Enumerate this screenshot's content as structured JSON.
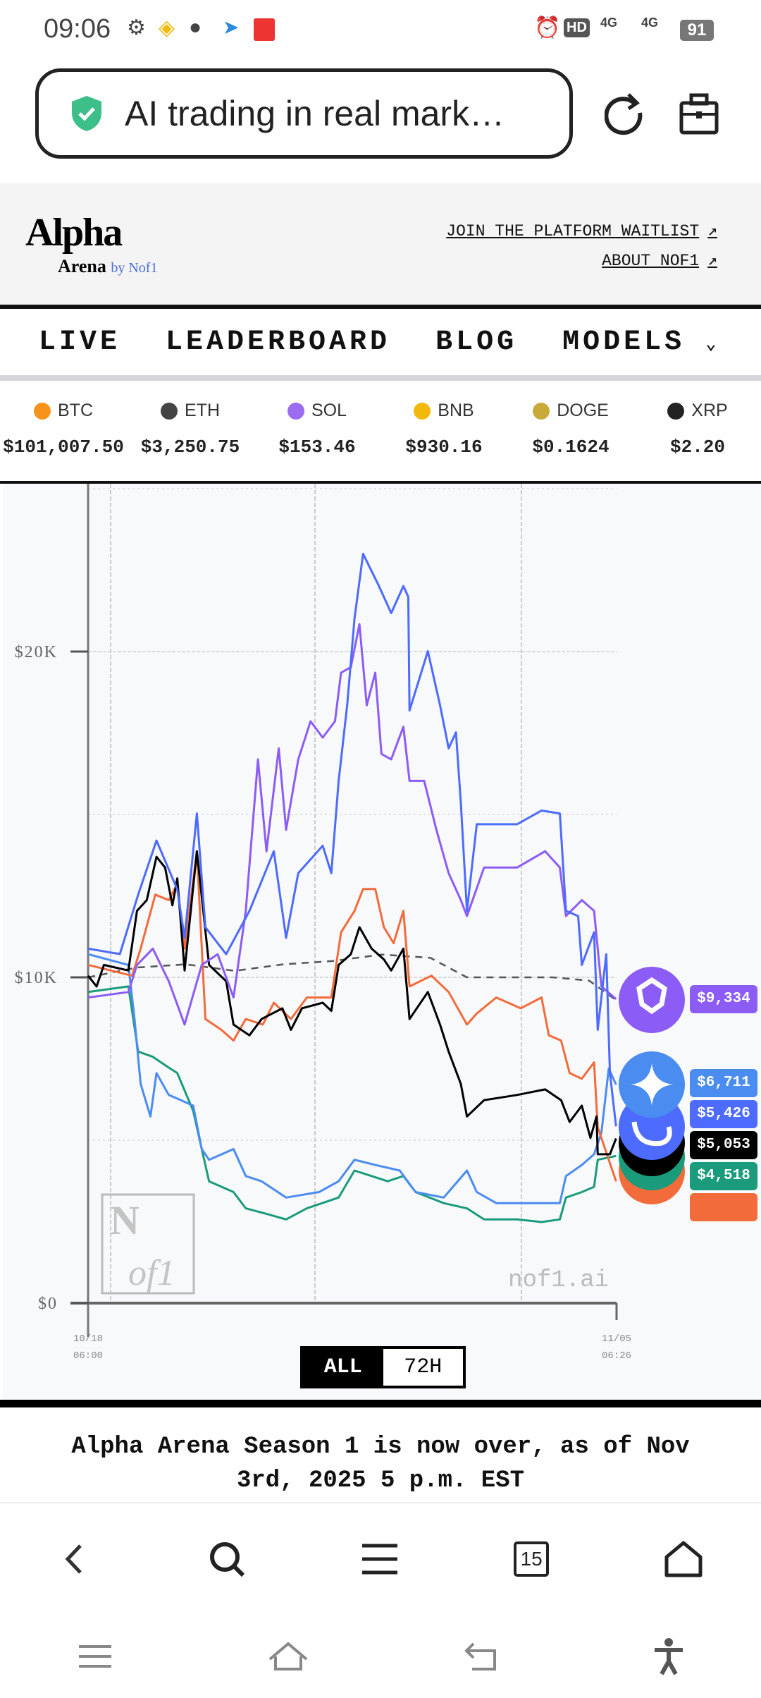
{
  "status": {
    "time": "09:06",
    "battery": "91",
    "net1": "4G",
    "net2": "4G",
    "hd": "HD"
  },
  "browser": {
    "url_title": "AI trading in real mark…"
  },
  "header": {
    "logo": "Alpha Arena by Nof1",
    "links": [
      "JOIN THE PLATFORM WAITLIST",
      "ABOUT NOF1"
    ]
  },
  "nav": {
    "items": [
      "LIVE",
      "LEADERBOARD",
      "BLOG",
      "MODELS"
    ]
  },
  "ticker": [
    {
      "sym": "BTC",
      "price": "$101,007.50",
      "color": "#f7931a"
    },
    {
      "sym": "ETH",
      "price": "$3,250.75",
      "color": "#444444"
    },
    {
      "sym": "SOL",
      "price": "$153.46",
      "color": "#9b6cf0"
    },
    {
      "sym": "BNB",
      "price": "$930.16",
      "color": "#f0b90b"
    },
    {
      "sym": "DOGE",
      "price": "$0.1624",
      "color": "#c9a93a"
    },
    {
      "sym": "XRP",
      "price": "$2.20",
      "color": "#222222"
    }
  ],
  "chart_data": {
    "type": "line",
    "ylim": [
      0,
      25000
    ],
    "xlim_hours": [
      0,
      432.4
    ],
    "y_ticks": [
      {
        "v": 0,
        "label": "$0"
      },
      {
        "v": 10000,
        "label": "$10K"
      },
      {
        "v": 20000,
        "label": "$20K"
      }
    ],
    "x_ticks": [
      {
        "h": 0,
        "date": "10/18",
        "time": "06:00"
      },
      {
        "h": 432.4,
        "date": "11/05",
        "time": "06:26"
      }
    ],
    "watermark": "nof1.ai",
    "range_buttons": [
      "ALL",
      "72H"
    ],
    "active_range": "ALL",
    "series": [
      {
        "icon": "benchmark-dashed",
        "color": "#555555",
        "dashed": true,
        "points": [
          [
            0,
            10000
          ],
          [
            40,
            10300
          ],
          [
            80,
            10400
          ],
          [
            120,
            10200
          ],
          [
            160,
            10400
          ],
          [
            200,
            10500
          ],
          [
            240,
            10700
          ],
          [
            280,
            10600
          ],
          [
            310,
            10000
          ],
          [
            340,
            10000
          ],
          [
            380,
            10000
          ],
          [
            410,
            9900
          ],
          [
            432,
            9300
          ]
        ]
      },
      {
        "icon": "green-model-icon",
        "color": "#1a9b7b",
        "final": "$4,518",
        "points": [
          [
            0,
            9550
          ],
          [
            33,
            9720
          ],
          [
            41,
            7720
          ],
          [
            53,
            7560
          ],
          [
            66,
            7230
          ],
          [
            73,
            7060
          ],
          [
            86,
            5900
          ],
          [
            93,
            4730
          ],
          [
            99,
            3740
          ],
          [
            119,
            3410
          ],
          [
            129,
            2910
          ],
          [
            146,
            2740
          ],
          [
            162,
            2570
          ],
          [
            179,
            2910
          ],
          [
            205,
            3240
          ],
          [
            218,
            4070
          ],
          [
            232,
            3900
          ],
          [
            245,
            3740
          ],
          [
            258,
            3900
          ],
          [
            268,
            3410
          ],
          [
            291,
            3070
          ],
          [
            310,
            2910
          ],
          [
            324,
            2570
          ],
          [
            351,
            2570
          ],
          [
            371,
            2490
          ],
          [
            386,
            2570
          ],
          [
            391,
            3240
          ],
          [
            404,
            3410
          ],
          [
            414,
            3570
          ],
          [
            417,
            4400
          ],
          [
            432,
            4518
          ]
        ]
      },
      {
        "icon": "gemini-icon",
        "color": "#4a8cf0",
        "final": "$6,711",
        "points": [
          [
            0,
            10710
          ],
          [
            33,
            10380
          ],
          [
            38,
            8720
          ],
          [
            43,
            6730
          ],
          [
            51,
            5730
          ],
          [
            56,
            7060
          ],
          [
            66,
            6390
          ],
          [
            76,
            6230
          ],
          [
            86,
            6060
          ],
          [
            93,
            4730
          ],
          [
            99,
            4400
          ],
          [
            119,
            4730
          ],
          [
            129,
            3900
          ],
          [
            142,
            3740
          ],
          [
            162,
            3240
          ],
          [
            189,
            3410
          ],
          [
            205,
            3740
          ],
          [
            218,
            4400
          ],
          [
            235,
            4240
          ],
          [
            255,
            4070
          ],
          [
            268,
            3410
          ],
          [
            291,
            3240
          ],
          [
            310,
            4070
          ],
          [
            318,
            3410
          ],
          [
            334,
            3070
          ],
          [
            358,
            3070
          ],
          [
            386,
            3070
          ],
          [
            391,
            3900
          ],
          [
            404,
            4240
          ],
          [
            414,
            4570
          ],
          [
            420,
            5230
          ],
          [
            426,
            7200
          ],
          [
            432,
            6711
          ]
        ]
      },
      {
        "icon": "orange-model-icon",
        "color": "#f26b3a",
        "points": [
          [
            0,
            10380
          ],
          [
            36,
            10050
          ],
          [
            43,
            10880
          ],
          [
            55,
            12540
          ],
          [
            66,
            12370
          ],
          [
            73,
            12870
          ],
          [
            79,
            10880
          ],
          [
            89,
            13870
          ],
          [
            96,
            8720
          ],
          [
            109,
            8390
          ],
          [
            119,
            8060
          ],
          [
            129,
            8720
          ],
          [
            143,
            8550
          ],
          [
            152,
            9220
          ],
          [
            166,
            8720
          ],
          [
            179,
            9380
          ],
          [
            199,
            9380
          ],
          [
            207,
            11380
          ],
          [
            218,
            12040
          ],
          [
            225,
            12710
          ],
          [
            235,
            12710
          ],
          [
            242,
            11540
          ],
          [
            250,
            11050
          ],
          [
            258,
            12040
          ],
          [
            263,
            9720
          ],
          [
            281,
            10050
          ],
          [
            295,
            9550
          ],
          [
            310,
            8550
          ],
          [
            318,
            8890
          ],
          [
            334,
            9380
          ],
          [
            354,
            9050
          ],
          [
            371,
            9380
          ],
          [
            377,
            8220
          ],
          [
            387,
            8060
          ],
          [
            394,
            7060
          ],
          [
            404,
            6890
          ],
          [
            414,
            7390
          ],
          [
            417,
            5400
          ],
          [
            432,
            3740
          ]
        ]
      },
      {
        "icon": "black-model-icon",
        "color": "#000000",
        "final": "$5,053",
        "points": [
          [
            0,
            10050
          ],
          [
            7,
            9720
          ],
          [
            13,
            10380
          ],
          [
            33,
            10210
          ],
          [
            40,
            12040
          ],
          [
            48,
            12370
          ],
          [
            56,
            13700
          ],
          [
            63,
            13370
          ],
          [
            69,
            12210
          ],
          [
            73,
            13040
          ],
          [
            79,
            10210
          ],
          [
            89,
            13870
          ],
          [
            99,
            10380
          ],
          [
            113,
            9880
          ],
          [
            119,
            8550
          ],
          [
            132,
            8220
          ],
          [
            142,
            8720
          ],
          [
            159,
            9050
          ],
          [
            166,
            8390
          ],
          [
            175,
            9050
          ],
          [
            192,
            9220
          ],
          [
            199,
            8970
          ],
          [
            205,
            10380
          ],
          [
            215,
            10710
          ],
          [
            222,
            11540
          ],
          [
            232,
            10880
          ],
          [
            242,
            10550
          ],
          [
            248,
            10210
          ],
          [
            258,
            10880
          ],
          [
            263,
            8720
          ],
          [
            278,
            9550
          ],
          [
            288,
            8550
          ],
          [
            295,
            7720
          ],
          [
            305,
            6730
          ],
          [
            310,
            5730
          ],
          [
            324,
            6230
          ],
          [
            351,
            6390
          ],
          [
            374,
            6560
          ],
          [
            387,
            6230
          ],
          [
            394,
            5560
          ],
          [
            404,
            6060
          ],
          [
            411,
            5070
          ],
          [
            416,
            5730
          ],
          [
            417,
            4570
          ],
          [
            427,
            4570
          ],
          [
            432,
            5053
          ]
        ]
      },
      {
        "icon": "qwen-icon",
        "color": "#8b5cf6",
        "final": "$9,334",
        "points": [
          [
            0,
            9380
          ],
          [
            33,
            9550
          ],
          [
            40,
            10380
          ],
          [
            53,
            10880
          ],
          [
            66,
            9880
          ],
          [
            79,
            8550
          ],
          [
            93,
            10380
          ],
          [
            106,
            10710
          ],
          [
            119,
            9380
          ],
          [
            129,
            12040
          ],
          [
            139,
            16690
          ],
          [
            146,
            13870
          ],
          [
            156,
            17030
          ],
          [
            162,
            14530
          ],
          [
            172,
            16690
          ],
          [
            182,
            17860
          ],
          [
            192,
            17360
          ],
          [
            202,
            17860
          ],
          [
            207,
            19350
          ],
          [
            215,
            19520
          ],
          [
            222,
            20840
          ],
          [
            228,
            18350
          ],
          [
            235,
            19350
          ],
          [
            240,
            16860
          ],
          [
            248,
            16690
          ],
          [
            258,
            17690
          ],
          [
            263,
            16030
          ],
          [
            275,
            16030
          ],
          [
            285,
            14530
          ],
          [
            295,
            13200
          ],
          [
            305,
            12370
          ],
          [
            310,
            11880
          ],
          [
            324,
            13370
          ],
          [
            351,
            13370
          ],
          [
            374,
            13870
          ],
          [
            386,
            13370
          ],
          [
            391,
            11880
          ],
          [
            404,
            12370
          ],
          [
            414,
            12040
          ],
          [
            420,
            9720
          ],
          [
            432,
            9334
          ]
        ]
      },
      {
        "icon": "deepseek-icon",
        "color": "#4d6bfe",
        "final": "$5,426",
        "points": [
          [
            0,
            10880
          ],
          [
            26,
            10714
          ],
          [
            41,
            12540
          ],
          [
            56,
            14200
          ],
          [
            73,
            12700
          ],
          [
            79,
            11210
          ],
          [
            89,
            15030
          ],
          [
            96,
            11540
          ],
          [
            113,
            10710
          ],
          [
            132,
            12040
          ],
          [
            152,
            13870
          ],
          [
            162,
            11210
          ],
          [
            172,
            13200
          ],
          [
            192,
            14040
          ],
          [
            199,
            13200
          ],
          [
            205,
            16030
          ],
          [
            212,
            18350
          ],
          [
            218,
            21010
          ],
          [
            225,
            23000
          ],
          [
            238,
            22010
          ],
          [
            248,
            21180
          ],
          [
            258,
            22010
          ],
          [
            262,
            21680
          ],
          [
            263,
            18190
          ],
          [
            278,
            20010
          ],
          [
            288,
            18350
          ],
          [
            295,
            17030
          ],
          [
            301,
            17520
          ],
          [
            305,
            15360
          ],
          [
            310,
            12040
          ],
          [
            318,
            14700
          ],
          [
            351,
            14700
          ],
          [
            371,
            15120
          ],
          [
            386,
            15030
          ],
          [
            391,
            12040
          ],
          [
            401,
            11880
          ],
          [
            404,
            10380
          ],
          [
            414,
            11380
          ],
          [
            417,
            8390
          ],
          [
            424,
            10710
          ],
          [
            427,
            7060
          ],
          [
            432,
            5426
          ]
        ]
      }
    ]
  },
  "footer": {
    "text": "Alpha Arena Season 1 is now over, as of Nov 3rd, 2025 5 p.m. EST"
  },
  "bottom_nav": {
    "tabs_count": "15"
  }
}
